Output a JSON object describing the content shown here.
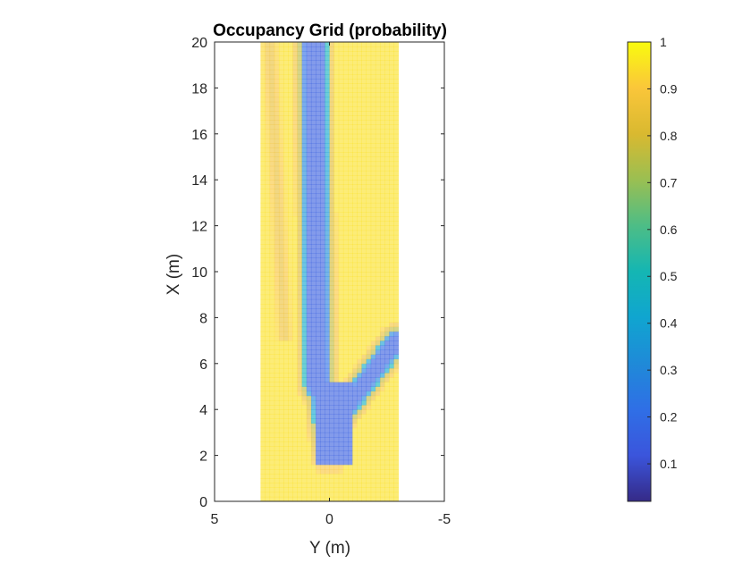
{
  "chart_data": {
    "type": "heatmap",
    "title": "Occupancy Grid (probability)",
    "xlabel": "Y (m)",
    "ylabel": "X (m)",
    "xlim": [
      5,
      -5
    ],
    "ylim": [
      0,
      20
    ],
    "x_ticks": [
      5,
      0,
      -5
    ],
    "x_tick_labels": [
      "5",
      "0",
      "-5"
    ],
    "y_ticks": [
      0,
      2,
      4,
      6,
      8,
      10,
      12,
      14,
      16,
      18,
      20
    ],
    "y_tick_labels": [
      "0",
      "2",
      "4",
      "6",
      "8",
      "10",
      "12",
      "14",
      "16",
      "18",
      "20"
    ],
    "grid_extent": {
      "y_from": 3,
      "y_to": -3,
      "x_from": 0,
      "x_to": 20
    },
    "grid_resolution_m": 0.2,
    "free_space_region": [
      {
        "x_range": [
          1.6,
          5.5
        ],
        "y_range": [
          0.6,
          -0.8
        ],
        "value": 0.15
      },
      {
        "x_range": [
          5.5,
          20
        ],
        "y_range": [
          1.4,
          0.0
        ],
        "value": 0.15
      },
      {
        "x_range": [
          3.5,
          8
        ],
        "y_range": [
          -0.6,
          -3.0
        ],
        "value": 0.15
      }
    ],
    "unknown_value": 0.95,
    "colorbar": {
      "colormap": "parula",
      "range": [
        0.02,
        1
      ],
      "ticks": [
        0.1,
        0.2,
        0.3,
        0.4,
        0.5,
        0.6,
        0.7,
        0.8,
        0.9,
        1
      ],
      "tick_labels": [
        "0.1",
        "0.2",
        "0.3",
        "0.4",
        "0.5",
        "0.6",
        "0.7",
        "0.8",
        "0.9",
        "1"
      ]
    }
  }
}
